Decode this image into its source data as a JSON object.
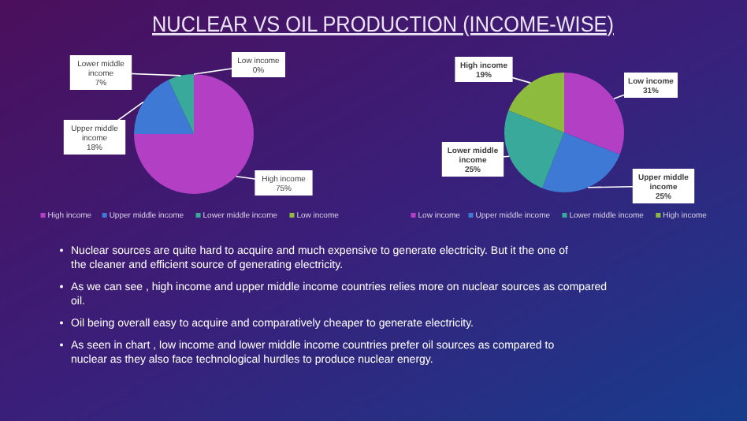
{
  "chart_data": [
    {
      "type": "pie",
      "title": "NUCLEAR VS OIL PRODUCTION (INCOME-WISE)",
      "categories": [
        "High income",
        "Upper middle income",
        "Lower middle income",
        "Low income"
      ],
      "values": [
        75,
        18,
        7,
        0
      ],
      "value_labels": [
        "75%",
        "18%",
        "7%",
        "0%"
      ],
      "colors": [
        "#b23fc4",
        "#3f79d6",
        "#38a99a",
        "#8dbb3e"
      ],
      "legend": "bottom"
    },
    {
      "type": "pie",
      "categories": [
        "Low income",
        "Upper middle income",
        "Lower middle income",
        "High income"
      ],
      "values": [
        31,
        25,
        25,
        19
      ],
      "value_labels": [
        "31%",
        "25%",
        "25%",
        "19%"
      ],
      "colors": [
        "#b23fc4",
        "#3f79d6",
        "#38a99a",
        "#8dbb3e"
      ],
      "legend": "bottom"
    },
    {
      "type": "other",
      "annotations": [
        "Nuclear sources are quite hard to acquire and much expensive to generate electricity. But it the one of the cleaner and efficient source of generating electricity.",
        "As we can see , high income and upper middle income countries relies more on nuclear sources as compared oil.",
        "Oil being overall easy to acquire and comparatively cheaper to generate electricity.",
        "As seen in chart , low income and lower middle income countries prefer oil sources as compared to nuclear as they also face technological hurdles to produce nuclear energy."
      ]
    }
  ]
}
